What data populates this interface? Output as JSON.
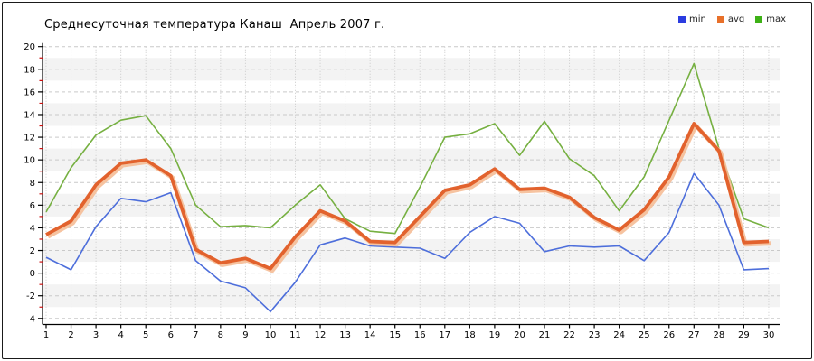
{
  "title": "Среднесуточная температура Канаш  Апрель 2007 г.",
  "legend": {
    "items": [
      {
        "label": "min",
        "color": "#2b3ce0"
      },
      {
        "label": "avg",
        "color": "#e8702a"
      },
      {
        "label": "max",
        "color": "#3eb116"
      }
    ]
  },
  "axes": {
    "y": {
      "tick_labels": [
        "20",
        "18",
        "16",
        "14",
        "12",
        "10",
        "8",
        "6",
        "4",
        "2",
        "0",
        "-2",
        "-4"
      ],
      "tick_values": [
        20,
        18,
        16,
        14,
        12,
        10,
        8,
        6,
        4,
        2,
        0,
        -2,
        -4
      ],
      "minor_tick_values": [
        19,
        17,
        15,
        13,
        11,
        9,
        7,
        5,
        3,
        1,
        -1,
        -3
      ],
      "minor_tick_color": "#cc1111",
      "axis_color": "#000000"
    },
    "x": {
      "tick_labels": [
        "1",
        "2",
        "3",
        "4",
        "5",
        "6",
        "7",
        "8",
        "9",
        "10",
        "11",
        "12",
        "13",
        "14",
        "15",
        "16",
        "17",
        "18",
        "19",
        "20",
        "21",
        "22",
        "23",
        "24",
        "25",
        "26",
        "27",
        "28",
        "29",
        "30"
      ],
      "axis_color": "#000000"
    }
  },
  "chart_data": {
    "type": "line",
    "title": "Среднесуточная температура Канаш  Апрель 2007 г.",
    "x": [
      1,
      2,
      3,
      4,
      5,
      6,
      7,
      8,
      9,
      10,
      11,
      12,
      13,
      14,
      15,
      16,
      17,
      18,
      19,
      20,
      21,
      22,
      23,
      24,
      25,
      26,
      27,
      28,
      29,
      30
    ],
    "series": [
      {
        "name": "min",
        "color": "#4d6edb",
        "width": 1.6,
        "values": [
          1.4,
          0.3,
          4.1,
          6.6,
          6.3,
          7.1,
          1.1,
          -0.7,
          -1.3,
          -3.4,
          -0.8,
          2.5,
          3.1,
          2.4,
          2.3,
          2.2,
          1.3,
          3.6,
          5.0,
          4.4,
          1.9,
          2.4,
          2.3,
          2.4,
          1.1,
          3.6,
          8.8,
          6.0,
          0.3,
          0.4
        ]
      },
      {
        "name": "avg",
        "color": "#e2622d",
        "halo_color": "#f5bd96",
        "width": 3.8,
        "values": [
          3.4,
          4.6,
          7.8,
          9.7,
          10.0,
          8.6,
          2.1,
          0.9,
          1.3,
          0.4,
          3.2,
          5.5,
          4.6,
          2.8,
          2.7,
          5.0,
          7.3,
          7.8,
          9.2,
          7.4,
          7.5,
          6.7,
          4.9,
          3.8,
          5.6,
          8.5,
          13.2,
          10.8,
          2.7,
          2.8
        ]
      },
      {
        "name": "max",
        "color": "#76b041",
        "width": 1.6,
        "values": [
          5.4,
          9.3,
          12.2,
          13.5,
          13.9,
          11.0,
          6.0,
          4.1,
          4.2,
          4.0,
          6.0,
          7.8,
          4.8,
          3.7,
          3.5,
          7.6,
          12.0,
          12.3,
          13.2,
          10.4,
          13.4,
          10.1,
          8.6,
          5.5,
          8.5,
          13.5,
          18.5,
          11.0,
          4.8,
          4.0
        ]
      }
    ],
    "ylim": [
      -4,
      20
    ],
    "xlabel": "",
    "ylabel": "",
    "grid": true,
    "gridline_color": "#c9c9c9",
    "band_colors": [
      "#ffffff",
      "#f3f3f3"
    ],
    "legend_position": "top-right"
  }
}
